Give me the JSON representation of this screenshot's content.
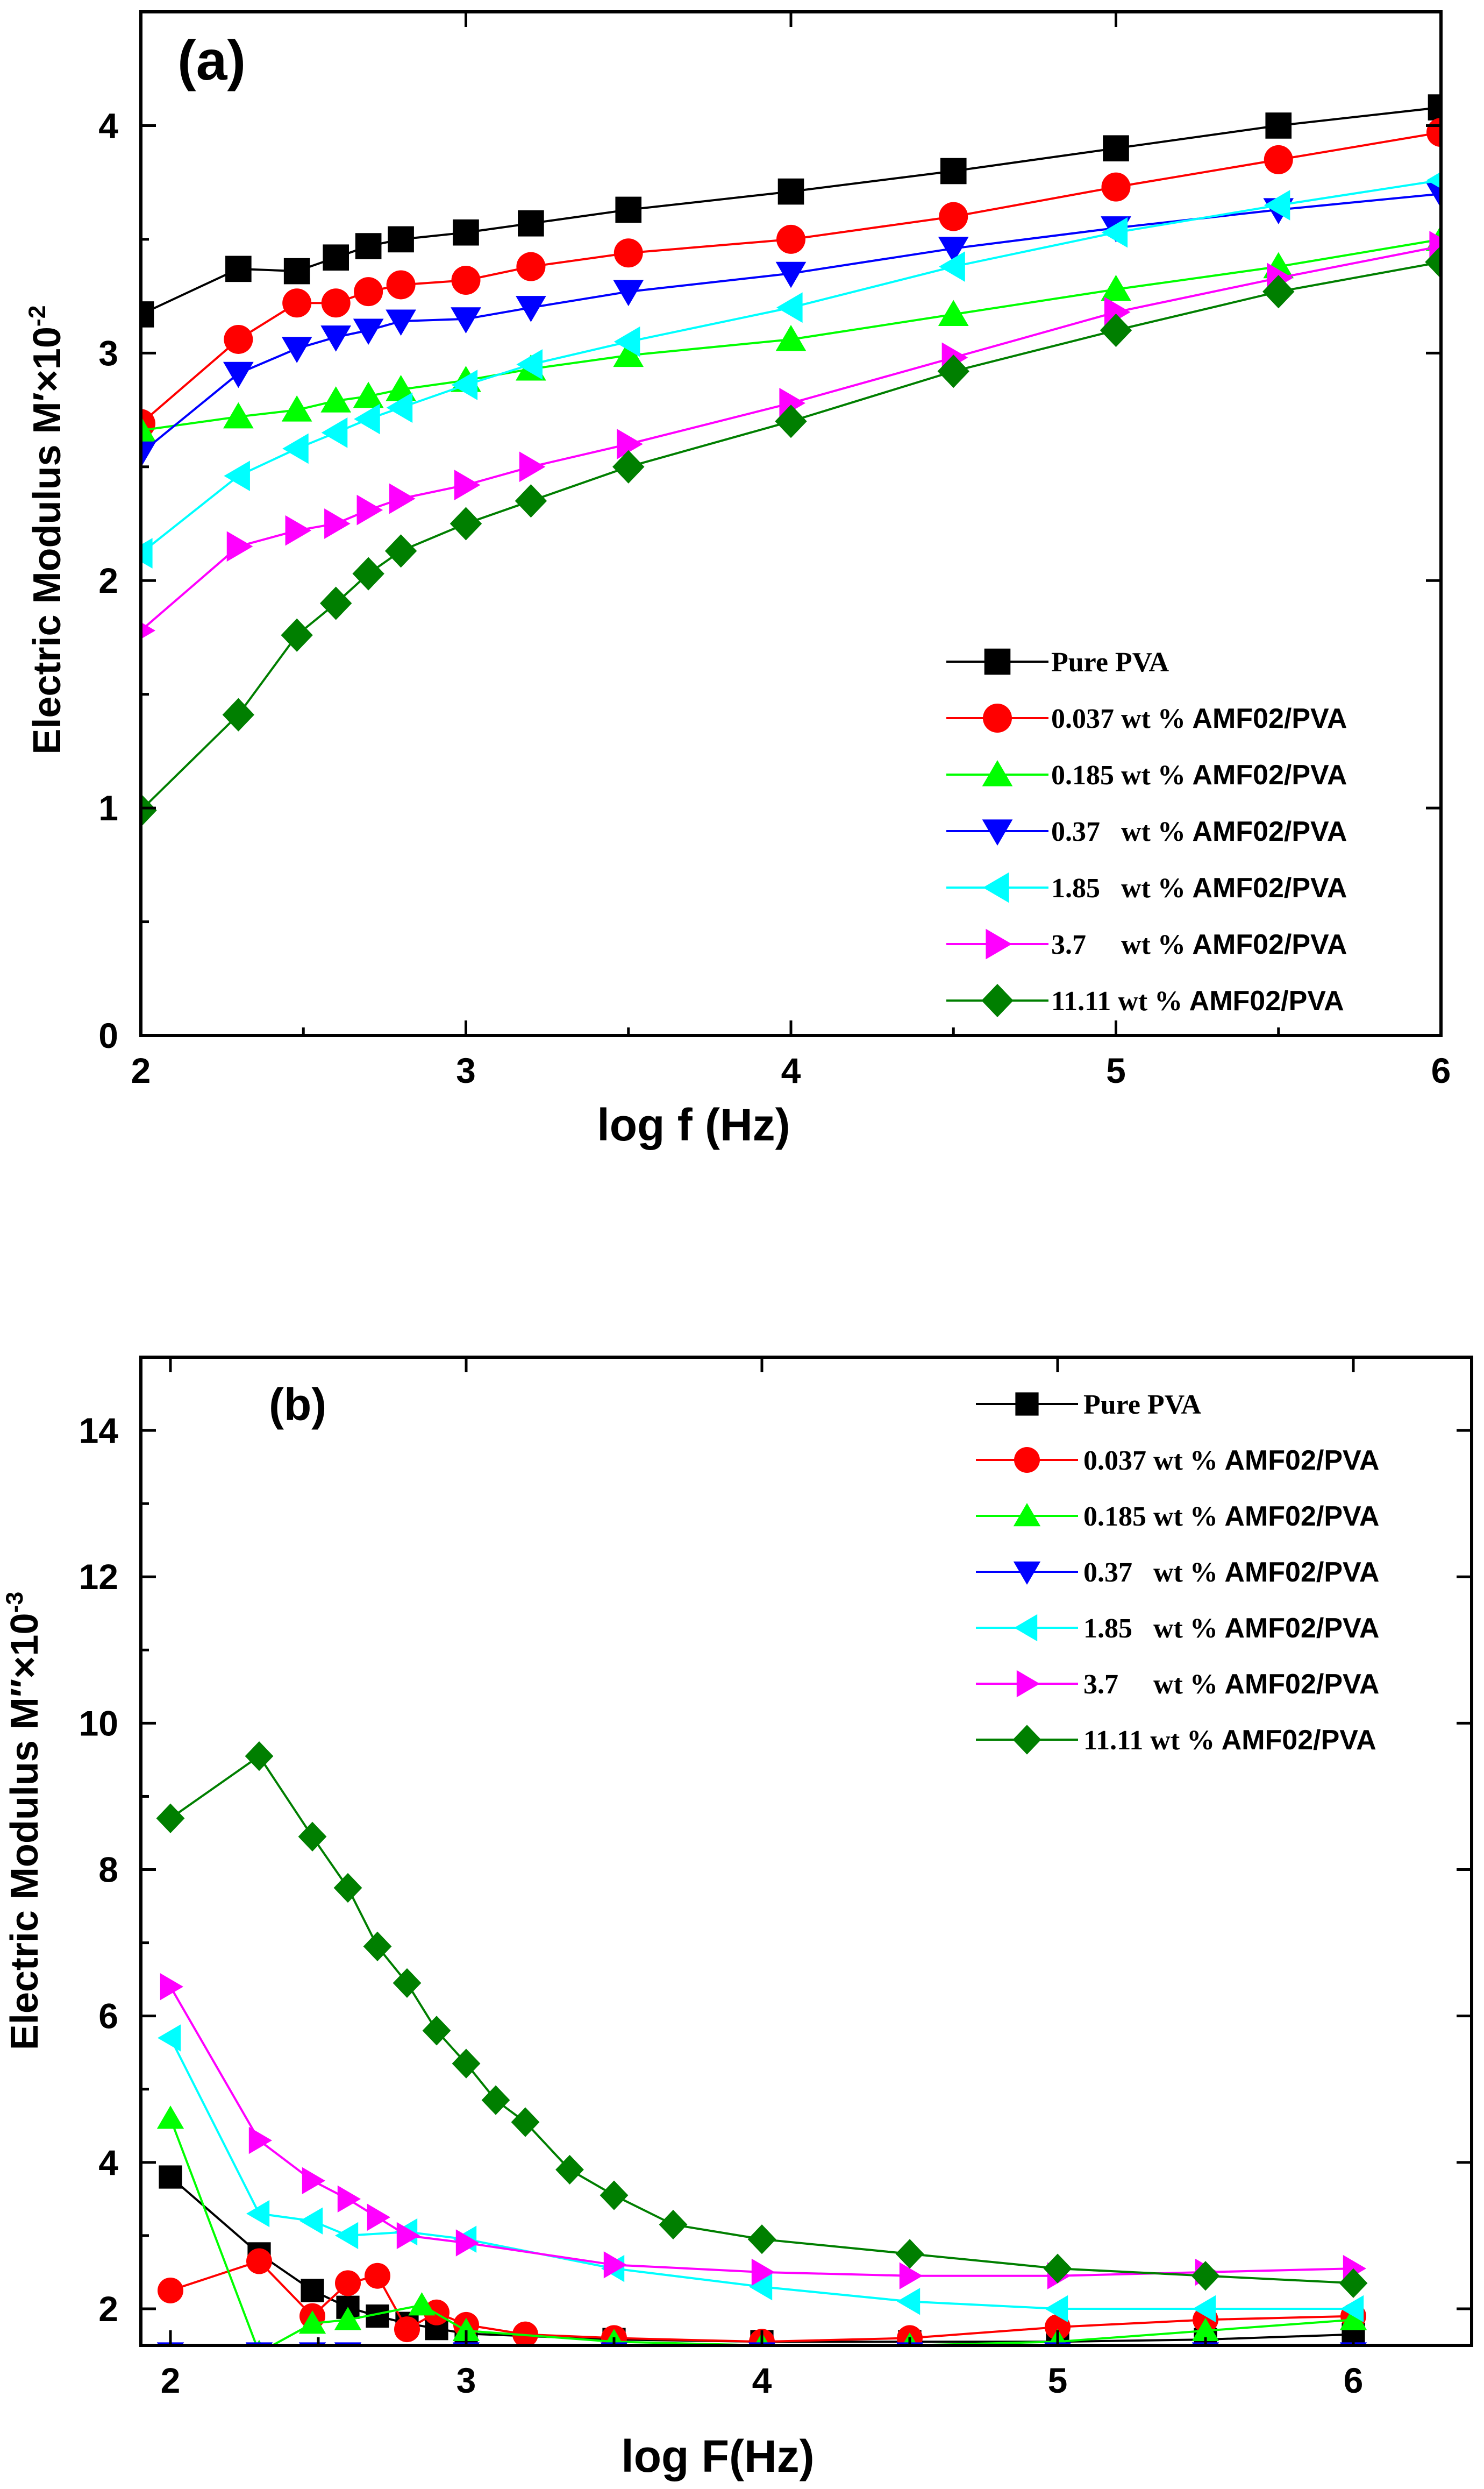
{
  "chart_data": [
    {
      "type": "line",
      "panel_label": "(a)",
      "xlabel": "log f (Hz)",
      "ylabel": "Electric Modulus M′×10",
      "ylabel_exp": "-2",
      "xlim": [
        2,
        6
      ],
      "ylim": [
        0,
        4.5
      ],
      "x_ticks": [
        2,
        3,
        4,
        5,
        6
      ],
      "y_ticks": [
        0,
        1,
        2,
        3,
        4
      ],
      "legend_position": "bottom-right",
      "series": [
        {
          "name": "Pure PVA",
          "color": "#000000",
          "marker": "square",
          "x": [
            2.0,
            2.3,
            2.48,
            2.6,
            2.7,
            2.8,
            3.0,
            3.2,
            3.5,
            4.0,
            4.5,
            5.0,
            5.5,
            6.0
          ],
          "y": [
            3.17,
            3.37,
            3.36,
            3.42,
            3.47,
            3.5,
            3.53,
            3.57,
            3.63,
            3.71,
            3.8,
            3.9,
            4.0,
            4.08
          ]
        },
        {
          "name": "0.037 wt % AMF02/PVA",
          "color": "#ff0000",
          "marker": "circle",
          "x": [
            2.0,
            2.3,
            2.48,
            2.6,
            2.7,
            2.8,
            3.0,
            3.2,
            3.5,
            4.0,
            4.5,
            5.0,
            5.5,
            6.0
          ],
          "y": [
            2.69,
            3.06,
            3.22,
            3.22,
            3.27,
            3.3,
            3.32,
            3.38,
            3.44,
            3.5,
            3.6,
            3.73,
            3.85,
            3.97
          ]
        },
        {
          "name": "0.185 wt % AMF02/PVA",
          "color": "#00ff00",
          "marker": "triangle-up",
          "x": [
            2.0,
            2.3,
            2.48,
            2.6,
            2.7,
            2.8,
            3.0,
            3.2,
            3.5,
            4.0,
            4.5,
            5.0,
            5.5,
            6.0
          ],
          "y": [
            2.66,
            2.72,
            2.75,
            2.79,
            2.81,
            2.84,
            2.88,
            2.93,
            2.99,
            3.06,
            3.17,
            3.28,
            3.38,
            3.5
          ]
        },
        {
          "name": "0.37   wt % AMF02/PVA",
          "color": "#0000ff",
          "marker": "triangle-down",
          "x": [
            2.0,
            2.3,
            2.48,
            2.6,
            2.7,
            2.8,
            3.0,
            3.2,
            3.5,
            4.0,
            4.5,
            5.0,
            5.5,
            6.0
          ],
          "y": [
            2.56,
            2.91,
            3.02,
            3.07,
            3.1,
            3.14,
            3.15,
            3.2,
            3.27,
            3.35,
            3.46,
            3.55,
            3.63,
            3.7
          ]
        },
        {
          "name": "1.85   wt % AMF02/PVA",
          "color": "#00ffff",
          "marker": "triangle-left",
          "x": [
            2.0,
            2.3,
            2.48,
            2.6,
            2.7,
            2.8,
            3.0,
            3.2,
            3.5,
            4.0,
            4.5,
            5.0,
            5.5,
            6.0
          ],
          "y": [
            2.12,
            2.46,
            2.58,
            2.65,
            2.71,
            2.76,
            2.86,
            2.95,
            3.05,
            3.2,
            3.38,
            3.53,
            3.65,
            3.76
          ]
        },
        {
          "name": "3.7     wt % AMF02/PVA",
          "color": "#ff00ff",
          "marker": "triangle-right",
          "x": [
            2.0,
            2.3,
            2.48,
            2.6,
            2.7,
            2.8,
            3.0,
            3.2,
            3.5,
            4.0,
            4.5,
            5.0,
            5.5,
            6.0
          ],
          "y": [
            1.78,
            2.15,
            2.22,
            2.25,
            2.31,
            2.36,
            2.42,
            2.5,
            2.6,
            2.78,
            2.98,
            3.18,
            3.33,
            3.47
          ]
        },
        {
          "name": "11.11 wt % AMF02/PVA",
          "color": "#007f00",
          "marker": "diamond",
          "x": [
            2.0,
            2.3,
            2.48,
            2.6,
            2.7,
            2.8,
            3.0,
            3.2,
            3.5,
            4.0,
            4.5,
            5.0,
            5.5,
            6.0
          ],
          "y": [
            0.99,
            1.41,
            1.76,
            1.9,
            2.03,
            2.13,
            2.25,
            2.35,
            2.5,
            2.7,
            2.92,
            3.1,
            3.27,
            3.4
          ]
        }
      ]
    },
    {
      "type": "line",
      "panel_label": "(b)",
      "xlabel": "log F(Hz)",
      "ylabel": "Electric Modulus M″×10",
      "ylabel_exp": "-3",
      "xlim": [
        1.9,
        6.4
      ],
      "ylim": [
        1.5,
        15
      ],
      "x_ticks": [
        2,
        3,
        4,
        5,
        6
      ],
      "y_ticks": [
        2,
        4,
        6,
        8,
        10,
        12,
        14
      ],
      "legend_position": "top-right",
      "series": [
        {
          "name": "Pure PVA",
          "color": "#000000",
          "marker": "square",
          "x": [
            2.0,
            2.3,
            2.48,
            2.6,
            2.7,
            2.8,
            2.9,
            3.0,
            3.5,
            4.0,
            4.5,
            5.0,
            5.5,
            6.0
          ],
          "y": [
            3.8,
            2.75,
            2.25,
            2.02,
            1.9,
            1.8,
            1.73,
            1.66,
            1.58,
            1.55,
            1.55,
            1.55,
            1.58,
            1.65
          ]
        },
        {
          "name": "0.037 wt % AMF02/PVA",
          "color": "#ff0000",
          "marker": "circle",
          "x": [
            2.0,
            2.3,
            2.48,
            2.6,
            2.7,
            2.8,
            2.9,
            3.0,
            3.2,
            3.5,
            4.0,
            4.5,
            5.0,
            5.5,
            6.0
          ],
          "y": [
            2.25,
            2.65,
            1.9,
            2.35,
            2.45,
            1.72,
            1.95,
            1.78,
            1.65,
            1.6,
            1.55,
            1.6,
            1.75,
            1.85,
            1.9
          ]
        },
        {
          "name": "0.185 wt % AMF02/PVA",
          "color": "#00ff00",
          "marker": "triangle-up",
          "x": [
            2.0,
            2.3,
            2.48,
            2.6,
            2.85,
            3.0,
            3.5,
            4.0,
            4.5,
            5.0,
            5.5,
            6.0
          ],
          "y": [
            4.6,
            1.4,
            1.8,
            1.85,
            2.05,
            1.7,
            1.55,
            1.5,
            1.5,
            1.55,
            1.7,
            1.85
          ]
        },
        {
          "name": "0.37   wt % AMF02/PVA",
          "color": "#0000ff",
          "marker": "triangle-down",
          "x": [
            2.0,
            2.3,
            2.48,
            2.6,
            3.0,
            3.5,
            4.0,
            4.5,
            5.0,
            5.5,
            6.0
          ],
          "y": [
            1.4,
            1.4,
            1.4,
            1.4,
            1.4,
            1.4,
            1.4,
            1.4,
            1.4,
            1.4,
            1.4
          ]
        },
        {
          "name": "1.85   wt % AMF02/PVA",
          "color": "#00ffff",
          "marker": "triangle-left",
          "x": [
            2.0,
            2.3,
            2.48,
            2.6,
            2.8,
            3.0,
            3.5,
            4.0,
            4.5,
            5.0,
            5.5,
            6.0
          ],
          "y": [
            5.7,
            3.3,
            3.2,
            3.0,
            3.05,
            2.95,
            2.55,
            2.3,
            2.1,
            2.0,
            2.0,
            2.0
          ]
        },
        {
          "name": "3.7     wt % AMF02/PVA",
          "color": "#ff00ff",
          "marker": "triangle-right",
          "x": [
            2.0,
            2.3,
            2.48,
            2.6,
            2.7,
            2.8,
            3.0,
            3.5,
            4.0,
            4.5,
            5.0,
            5.5,
            6.0
          ],
          "y": [
            6.4,
            4.3,
            3.75,
            3.5,
            3.25,
            3.0,
            2.9,
            2.6,
            2.5,
            2.45,
            2.45,
            2.5,
            2.55
          ]
        },
        {
          "name": "11.11 wt % AMF02/PVA",
          "color": "#007f00",
          "marker": "diamond",
          "x": [
            2.0,
            2.3,
            2.48,
            2.6,
            2.7,
            2.8,
            2.9,
            3.0,
            3.1,
            3.2,
            3.35,
            3.5,
            3.7,
            4.0,
            4.5,
            5.0,
            5.5,
            6.0
          ],
          "y": [
            8.7,
            9.55,
            8.45,
            7.75,
            6.95,
            6.45,
            5.8,
            5.35,
            4.85,
            4.55,
            3.9,
            3.55,
            3.15,
            2.95,
            2.75,
            2.55,
            2.45,
            2.35
          ]
        }
      ]
    }
  ]
}
